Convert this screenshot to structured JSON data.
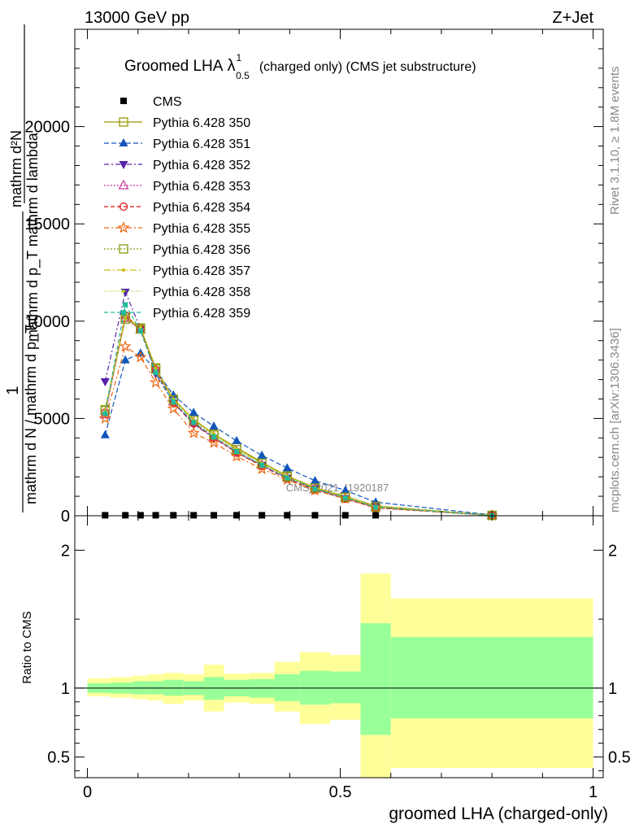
{
  "header": {
    "left": "13000 GeV pp",
    "right": "Z+Jet"
  },
  "side": {
    "rivet": "Rivet 3.1.10, ≥ 1.8M events",
    "mcplots": "mcplots.cern.ch [arXiv:1306.3436]"
  },
  "watermark": "CMS_2021_I1920187",
  "colors": {
    "cms": "#000000",
    "green_band": "#99ff99",
    "yellow_band": "#ffff99"
  },
  "chart_data": [
    {
      "type": "line",
      "title_main": "Groomed LHA",
      "title_sym": "λ",
      "title_sup": "1",
      "title_sub": "0.5",
      "title_rest": "(charged only) (CMS jet substructure)",
      "ylabel": {
        "frac_top": "1",
        "frac_bottom": "mathrm d N / mathrm d p_T",
        "inner_num": "mathrm d²N",
        "inner_den": "mathrm d p_T mathrm d lambda"
      },
      "ylim": [
        0,
        25000
      ],
      "yticks": [
        "0",
        "5000",
        "10000",
        "15000",
        "20000"
      ],
      "ytick_values": [
        0,
        5000,
        10000,
        15000,
        20000
      ],
      "x": [
        0.035,
        0.075,
        0.105,
        0.135,
        0.17,
        0.21,
        0.25,
        0.295,
        0.345,
        0.395,
        0.45,
        0.51,
        0.57,
        0.8
      ],
      "legend_position": "top-left",
      "series": [
        {
          "name": "CMS",
          "color": "#000000",
          "marker": "square-filled",
          "dash": "none",
          "values": [
            25,
            25,
            25,
            25,
            25,
            25,
            25,
            25,
            25,
            25,
            25,
            25,
            25,
            0
          ]
        },
        {
          "name": "Pythia 6.428 350",
          "color": "#999900",
          "marker": "square-open",
          "dash": "solid",
          "values": [
            5450,
            10200,
            9650,
            7600,
            6000,
            4950,
            4200,
            3500,
            2750,
            2050,
            1450,
            1000,
            500,
            20
          ]
        },
        {
          "name": "Pythia 6.428 351",
          "color": "#1155bb",
          "marker": "triangle-up-filled",
          "dash": "6,3",
          "values": [
            4150,
            8000,
            8350,
            7500,
            6200,
            5300,
            4600,
            3850,
            3100,
            2450,
            1800,
            1300,
            700,
            40
          ]
        },
        {
          "name": "Pythia 6.428 352",
          "color": "#5522aa",
          "marker": "triangle-down-filled",
          "dash": "6,3,2,3",
          "values": [
            6900,
            11500,
            9600,
            7300,
            5800,
            4700,
            4000,
            3250,
            2600,
            1950,
            1400,
            900,
            450,
            20
          ]
        },
        {
          "name": "Pythia 6.428 353",
          "color": "#cc3399",
          "marker": "triangle-up-open",
          "dash": "2,2",
          "values": [
            5200,
            10150,
            9550,
            7500,
            5850,
            4800,
            4050,
            3300,
            2600,
            1950,
            1380,
            900,
            420,
            18
          ]
        },
        {
          "name": "Pythia 6.428 354",
          "color": "#dd1111",
          "marker": "circle-open",
          "dash": "5,3",
          "values": [
            5300,
            10300,
            9600,
            7500,
            5800,
            4750,
            4000,
            3250,
            2550,
            1900,
            1330,
            870,
            400,
            18
          ]
        },
        {
          "name": "Pythia 6.428 355",
          "color": "#ee6611",
          "marker": "star-open",
          "dash": "6,3,2,3",
          "values": [
            5000,
            8700,
            8150,
            6850,
            5500,
            4250,
            3750,
            3050,
            2400,
            1850,
            1300,
            880,
            420,
            18
          ]
        },
        {
          "name": "Pythia 6.428 356",
          "color": "#889911",
          "marker": "square-open",
          "dash": "2,2",
          "values": [
            5400,
            10100,
            9600,
            7550,
            5950,
            4900,
            4150,
            3400,
            2700,
            2000,
            1420,
            950,
            460,
            20
          ]
        },
        {
          "name": "Pythia 6.428 357",
          "color": "#ccbb11",
          "marker": "dot",
          "dash": "8,3,2,3",
          "values": [
            5400,
            10200,
            9700,
            7600,
            6000,
            4950,
            4200,
            3450,
            2700,
            2050,
            1450,
            980,
            480,
            20
          ]
        },
        {
          "name": "Pythia 6.428 358",
          "color": "#aacc22",
          "marker": "dot",
          "dash": "1,2",
          "values": [
            5350,
            10150,
            9650,
            7550,
            5950,
            4900,
            4150,
            3400,
            2700,
            2000,
            1420,
            960,
            470,
            20
          ]
        },
        {
          "name": "Pythia 6.428 359",
          "color": "#22bb99",
          "marker": "square-filled-small",
          "dash": "5,3",
          "values": [
            5250,
            10850,
            9500,
            7350,
            5850,
            4800,
            4050,
            3300,
            2600,
            1950,
            1380,
            920,
            440,
            18
          ]
        }
      ]
    },
    {
      "type": "area",
      "ylabel": "Ratio to CMS",
      "xlabel": "groomed LHA (charged-only)",
      "ylim": [
        0.35,
        2.25
      ],
      "yticks_left": [
        "0.5",
        "1",
        "2"
      ],
      "yticks_right": [
        "0.5",
        "1",
        "2"
      ],
      "ytick_values": [
        0.5,
        1,
        2
      ],
      "xlim": [
        -0.025,
        1.02
      ],
      "xticks": [
        "0",
        "0.5",
        "1"
      ],
      "xtick_values": [
        0,
        0.5,
        1
      ],
      "bins": [
        {
          "lo": 0.0,
          "hi": 0.045,
          "green": [
            0.965,
            1.035
          ],
          "yellow": [
            0.94,
            1.07
          ]
        },
        {
          "lo": 0.045,
          "hi": 0.09,
          "green": [
            0.96,
            1.04
          ],
          "yellow": [
            0.93,
            1.08
          ]
        },
        {
          "lo": 0.09,
          "hi": 0.12,
          "green": [
            0.955,
            1.05
          ],
          "yellow": [
            0.92,
            1.09
          ]
        },
        {
          "lo": 0.12,
          "hi": 0.15,
          "green": [
            0.955,
            1.05
          ],
          "yellow": [
            0.91,
            1.1
          ]
        },
        {
          "lo": 0.15,
          "hi": 0.19,
          "green": [
            0.945,
            1.06
          ],
          "yellow": [
            0.885,
            1.11
          ]
        },
        {
          "lo": 0.19,
          "hi": 0.23,
          "green": [
            0.95,
            1.05
          ],
          "yellow": [
            0.91,
            1.1
          ]
        },
        {
          "lo": 0.23,
          "hi": 0.27,
          "green": [
            0.915,
            1.08
          ],
          "yellow": [
            0.83,
            1.17
          ]
        },
        {
          "lo": 0.27,
          "hi": 0.32,
          "green": [
            0.94,
            1.06
          ],
          "yellow": [
            0.895,
            1.105
          ]
        },
        {
          "lo": 0.32,
          "hi": 0.37,
          "green": [
            0.93,
            1.065
          ],
          "yellow": [
            0.885,
            1.11
          ]
        },
        {
          "lo": 0.37,
          "hi": 0.42,
          "green": [
            0.905,
            1.1
          ],
          "yellow": [
            0.83,
            1.19
          ]
        },
        {
          "lo": 0.42,
          "hi": 0.48,
          "green": [
            0.88,
            1.125
          ],
          "yellow": [
            0.74,
            1.26
          ]
        },
        {
          "lo": 0.48,
          "hi": 0.54,
          "green": [
            0.89,
            1.12
          ],
          "yellow": [
            0.77,
            1.24
          ]
        },
        {
          "lo": 0.54,
          "hi": 0.6,
          "green": [
            0.66,
            1.47
          ],
          "yellow": [
            0.3,
            1.83
          ]
        },
        {
          "lo": 0.6,
          "hi": 1.0,
          "green": [
            0.78,
            1.37
          ],
          "yellow": [
            0.42,
            1.65
          ]
        }
      ]
    }
  ]
}
